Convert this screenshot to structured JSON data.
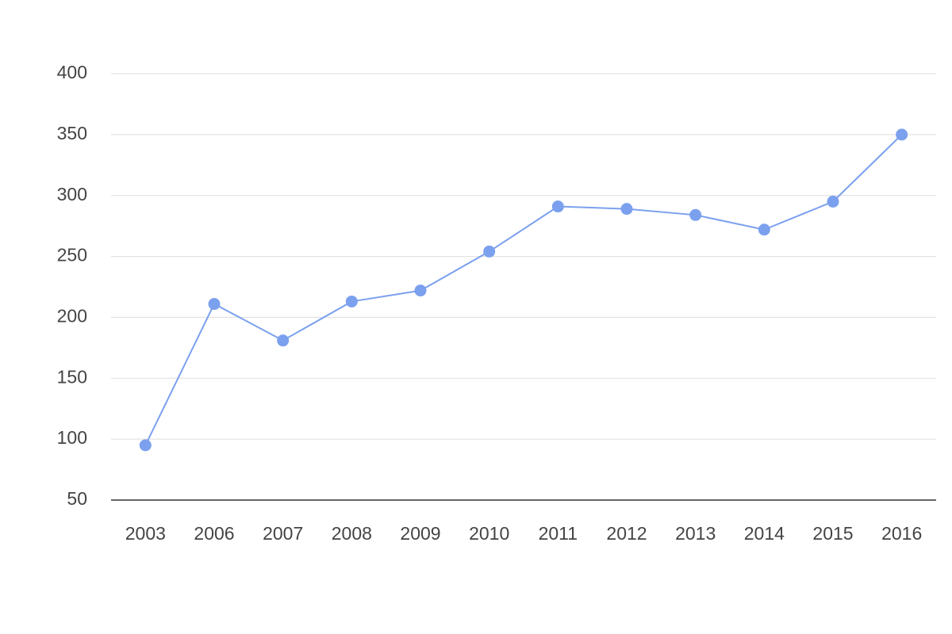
{
  "chart_data": {
    "type": "line",
    "categories": [
      "2003",
      "2006",
      "2007",
      "2008",
      "2009",
      "2010",
      "2011",
      "2012",
      "2013",
      "2014",
      "2015",
      "2016"
    ],
    "values": [
      95,
      211,
      181,
      213,
      222,
      254,
      291,
      289,
      284,
      272,
      295,
      350
    ],
    "color": "#7ba0ee",
    "ylim": [
      50,
      400
    ],
    "yticks": [
      50,
      100,
      150,
      200,
      250,
      300,
      350,
      400
    ],
    "grid": true
  }
}
